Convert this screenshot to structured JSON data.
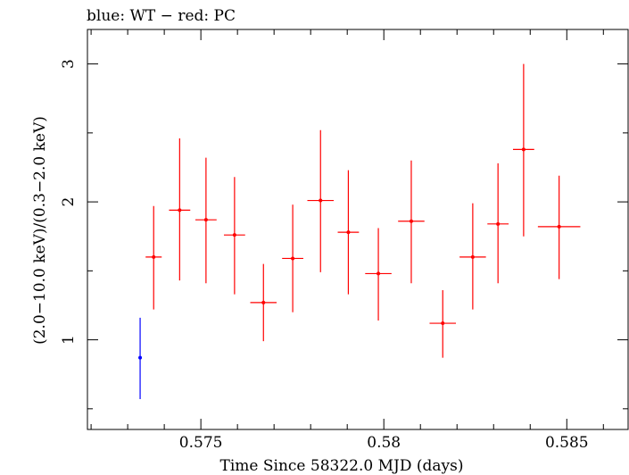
{
  "chart_data": {
    "type": "scatter",
    "title": "blue: WT − red: PC",
    "xlabel": "Time Since 58322.0 MJD (days)",
    "ylabel": "(2.0−10.0 keV)/(0.3−2.0 keV)",
    "xlim": [
      0.5719,
      0.5867
    ],
    "ylim": [
      0.35,
      3.25
    ],
    "x_ticks": [
      {
        "value": 0.575,
        "label": "0.575"
      },
      {
        "value": 0.58,
        "label": "0.58"
      },
      {
        "value": 0.585,
        "label": "0.585"
      }
    ],
    "y_ticks": [
      {
        "value": 1,
        "label": "1"
      },
      {
        "value": 2,
        "label": "2"
      },
      {
        "value": 3,
        "label": "3"
      }
    ],
    "x_minor_step": 0.001,
    "y_minor_step": 0.5,
    "grid": false,
    "series": [
      {
        "name": "WT",
        "color": "#0000ff",
        "points": [
          {
            "x": 0.57334,
            "xerr": 0.0,
            "y": 0.87,
            "ylo": 0.57,
            "yhi": 1.16
          }
        ]
      },
      {
        "name": "PC",
        "color": "#ff0000",
        "points": [
          {
            "x": 0.57371,
            "xerr": 0.00022,
            "y": 1.6,
            "ylo": 1.22,
            "yhi": 1.97
          },
          {
            "x": 0.57442,
            "xerr": 0.00029,
            "y": 1.94,
            "ylo": 1.43,
            "yhi": 2.46
          },
          {
            "x": 0.57514,
            "xerr": 0.00029,
            "y": 1.87,
            "ylo": 1.41,
            "yhi": 2.32
          },
          {
            "x": 0.57592,
            "xerr": 0.00029,
            "y": 1.76,
            "ylo": 1.33,
            "yhi": 2.18
          },
          {
            "x": 0.57671,
            "xerr": 0.00036,
            "y": 1.27,
            "ylo": 0.99,
            "yhi": 1.55
          },
          {
            "x": 0.57751,
            "xerr": 0.00029,
            "y": 1.59,
            "ylo": 1.2,
            "yhi": 1.98
          },
          {
            "x": 0.57827,
            "xerr": 0.00036,
            "y": 2.01,
            "ylo": 1.49,
            "yhi": 2.52
          },
          {
            "x": 0.57903,
            "xerr": 0.00029,
            "y": 1.78,
            "ylo": 1.33,
            "yhi": 2.23
          },
          {
            "x": 0.57985,
            "xerr": 0.00036,
            "y": 1.48,
            "ylo": 1.14,
            "yhi": 1.81
          },
          {
            "x": 0.58075,
            "xerr": 0.00036,
            "y": 1.86,
            "ylo": 1.41,
            "yhi": 2.3
          },
          {
            "x": 0.58161,
            "xerr": 0.00036,
            "y": 1.12,
            "ylo": 0.87,
            "yhi": 1.36
          },
          {
            "x": 0.58243,
            "xerr": 0.00036,
            "y": 1.6,
            "ylo": 1.22,
            "yhi": 1.99
          },
          {
            "x": 0.58312,
            "xerr": 0.00029,
            "y": 1.84,
            "ylo": 1.41,
            "yhi": 2.28
          },
          {
            "x": 0.58382,
            "xerr": 0.00029,
            "y": 2.38,
            "ylo": 1.75,
            "yhi": 3.0
          },
          {
            "x": 0.58479,
            "xerr": 0.00058,
            "y": 1.82,
            "ylo": 1.44,
            "yhi": 2.19
          }
        ]
      }
    ]
  }
}
